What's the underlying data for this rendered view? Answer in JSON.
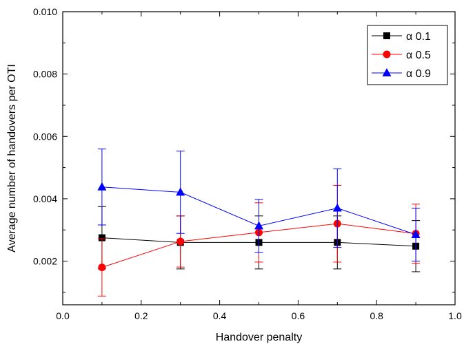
{
  "chart_data": {
    "type": "line",
    "xlabel": "Handover penalty",
    "ylabel": "Average number of handovers per OTI",
    "xlim": [
      0.0,
      1.0
    ],
    "ylim": [
      0.0006,
      0.01
    ],
    "xticks": [
      0.0,
      0.2,
      0.4,
      0.6,
      0.8,
      1.0
    ],
    "xtick_labels": [
      "0.0",
      "0.2",
      "0.4",
      "0.6",
      "0.8",
      "1.0"
    ],
    "yticks": [
      0.002,
      0.004,
      0.006,
      0.008,
      0.01
    ],
    "ytick_labels": [
      "0.002",
      "0.004",
      "0.006",
      "0.008",
      "0.010"
    ],
    "x": [
      0.1,
      0.3,
      0.5,
      0.7,
      0.9
    ],
    "legend_position": "top-right",
    "grid": false,
    "series": [
      {
        "name": "α 0.1",
        "color": "#000000",
        "marker": "square",
        "values": [
          0.00275,
          0.0026,
          0.0026,
          0.0026,
          0.00248
        ],
        "error": [
          0.001,
          0.00085,
          0.00085,
          0.00085,
          0.00082
        ]
      },
      {
        "name": "α 0.5",
        "color": "#ff0000",
        "marker": "circle",
        "values": [
          0.0018,
          0.00263,
          0.00292,
          0.0032,
          0.00288
        ],
        "error": [
          0.00092,
          0.00082,
          0.00095,
          0.00123,
          0.00095
        ]
      },
      {
        "name": "α 0.9",
        "color": "#0000ff",
        "marker": "triangle",
        "values": [
          0.00438,
          0.00421,
          0.00313,
          0.0037,
          0.00285
        ],
        "error": [
          0.00122,
          0.00132,
          0.00085,
          0.00126,
          0.00085
        ]
      }
    ]
  }
}
